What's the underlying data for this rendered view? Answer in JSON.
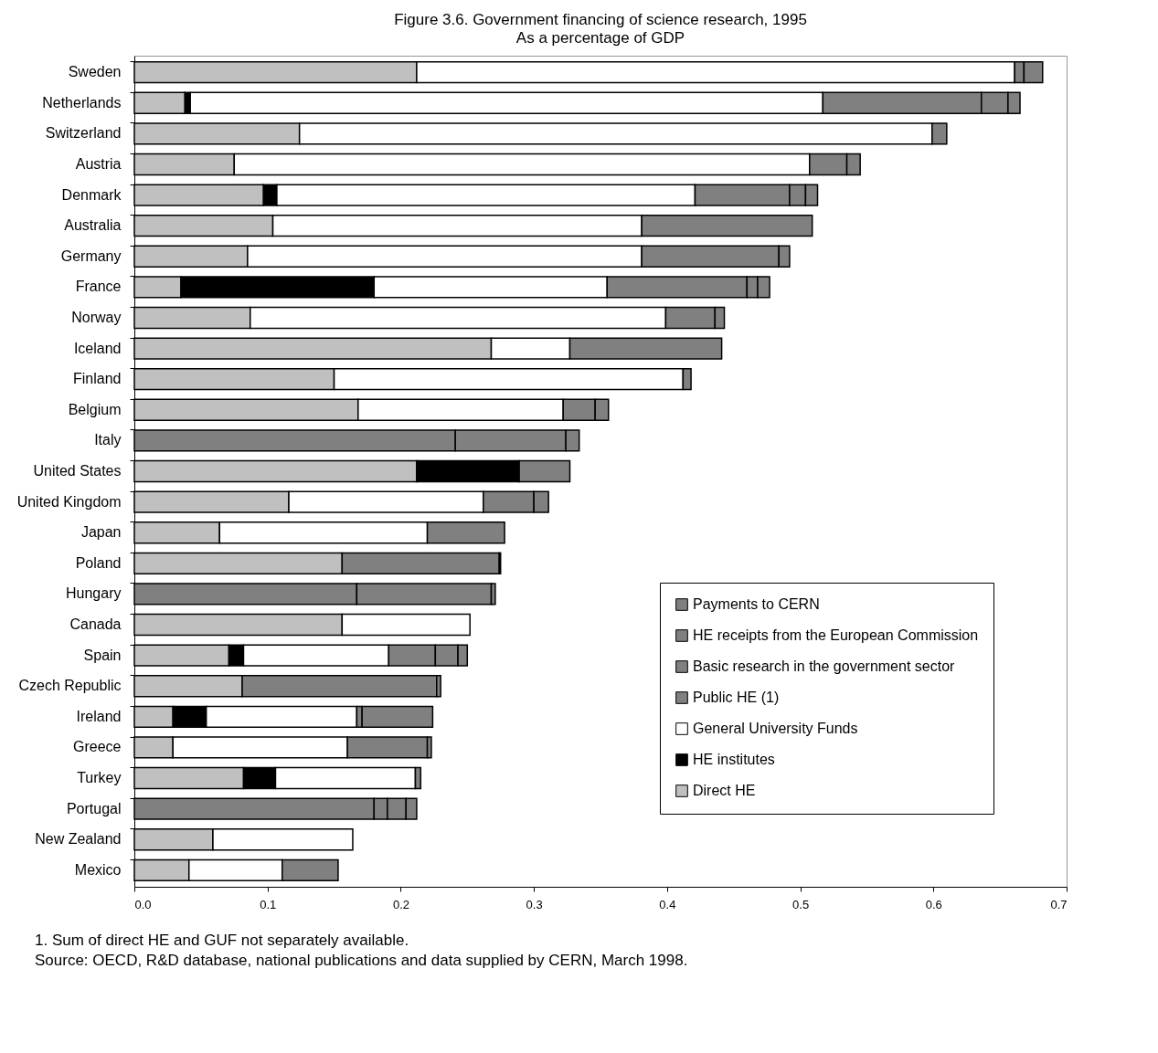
{
  "chart_data": {
    "type": "bar",
    "orientation": "horizontal",
    "stacked": true,
    "title": "Figure 3.6.  Government financing of science research, 1995",
    "subtitle": "As a percentage of GDP",
    "categories": [
      "Sweden",
      "Netherlands",
      "Switzerland",
      "Austria",
      "Denmark",
      "Australia",
      "Germany",
      "France",
      "Norway",
      "Iceland",
      "Finland",
      "Belgium",
      "Italy",
      "United States",
      "United Kingdom",
      "Japan",
      "Poland",
      "Hungary",
      "Canada",
      "Spain",
      "Czech Republic",
      "Ireland",
      "Greece",
      "Turkey",
      "Portugal",
      "New Zealand",
      "Mexico"
    ],
    "series": [
      {
        "name": "Direct HE",
        "color": "#c0c0c0",
        "values": [
          0.212,
          0.038,
          0.124,
          0.075,
          0.097,
          0.104,
          0.085,
          0.035,
          0.087,
          0.268,
          0.15,
          0.168,
          null,
          0.212,
          0.116,
          0.064,
          0.156,
          null,
          0.156,
          0.071,
          0.081,
          0.029,
          0.029,
          0.082,
          null,
          0.059,
          0.041
        ]
      },
      {
        "name": "HE institutes",
        "color": "#000000",
        "values": [
          null,
          0.004,
          null,
          null,
          0.01,
          null,
          null,
          0.145,
          null,
          null,
          null,
          null,
          null,
          0.077,
          null,
          null,
          null,
          null,
          null,
          0.011,
          null,
          0.025,
          null,
          0.024,
          null,
          null,
          null
        ]
      },
      {
        "name": "General University Funds",
        "color": "#ffffff",
        "values": [
          0.449,
          0.475,
          0.475,
          0.432,
          0.314,
          0.277,
          0.296,
          0.175,
          0.312,
          0.059,
          0.262,
          0.154,
          null,
          null,
          0.146,
          0.156,
          null,
          null,
          0.096,
          0.109,
          null,
          0.113,
          0.131,
          0.105,
          null,
          0.105,
          0.07
        ]
      },
      {
        "name": "Public HE (1)",
        "color": "#808080",
        "values": [
          null,
          null,
          null,
          null,
          null,
          null,
          null,
          null,
          null,
          null,
          null,
          null,
          0.241,
          null,
          null,
          null,
          null,
          0.167,
          null,
          null,
          null,
          0.004,
          null,
          null,
          0.18,
          null,
          null
        ]
      },
      {
        "name": "Basic research in the government sector",
        "color": "#808080",
        "values": [
          0.007,
          0.119,
          null,
          0.028,
          0.071,
          0.128,
          0.103,
          0.105,
          0.037,
          0.114,
          null,
          0.024,
          0.083,
          0.038,
          0.038,
          0.058,
          0.118,
          0.101,
          null,
          0.035,
          0.146,
          0.053,
          0.06,
          0.004,
          0.01,
          null,
          0.042
        ]
      },
      {
        "name": "HE receipts from the European Commission",
        "color": "#808080",
        "values": [
          null,
          0.02,
          null,
          null,
          0.012,
          null,
          null,
          0.008,
          null,
          null,
          null,
          null,
          null,
          null,
          null,
          null,
          null,
          null,
          null,
          0.017,
          null,
          null,
          null,
          null,
          0.014,
          null,
          null
        ]
      },
      {
        "name": "Payments to CERN",
        "color": "#808080",
        "values": [
          0.014,
          0.009,
          0.011,
          0.01,
          0.009,
          null,
          0.008,
          0.009,
          0.007,
          null,
          0.006,
          0.01,
          0.01,
          null,
          0.011,
          null,
          0.001,
          0.003,
          null,
          0.007,
          0.003,
          null,
          0.003,
          null,
          0.008,
          null,
          null
        ]
      }
    ],
    "xlim": [
      0,
      0.7
    ],
    "xticks": [
      {
        "value": 0,
        "label": "0.0"
      },
      0.1,
      0.2,
      0.3,
      0.4,
      0.5,
      0.6,
      0.7
    ],
    "legend": "bottom right",
    "annotations": [
      "1.   Sum of direct HE and GUF not separately available.",
      "Source:  OECD, R&D database, national publications and data supplied by CERN, March 1998."
    ]
  }
}
